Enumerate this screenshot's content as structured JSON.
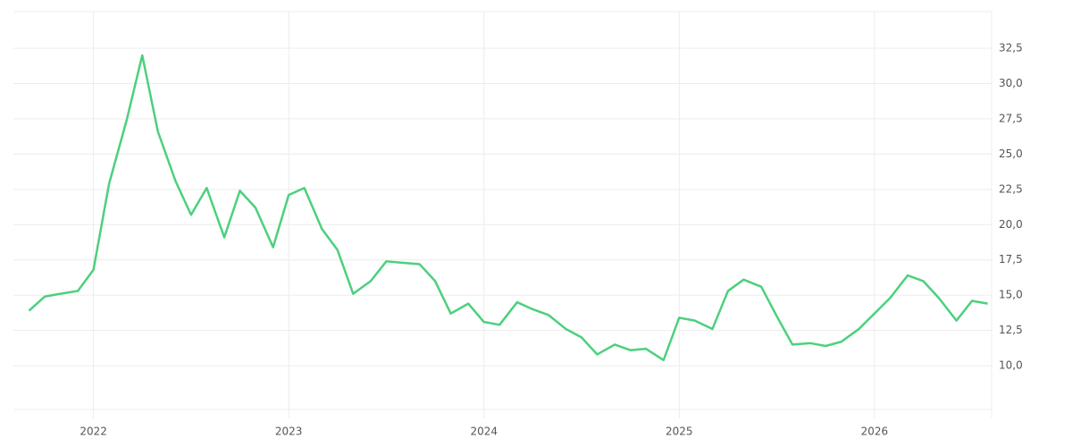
{
  "chart_data": {
    "type": "line",
    "x": [
      2021.67,
      2021.75,
      2021.83,
      2021.92,
      2022,
      2022.08,
      2022.17,
      2022.25,
      2022.33,
      2022.42,
      2022.5,
      2022.58,
      2022.67,
      2022.75,
      2022.83,
      2022.92,
      2023,
      2023.08,
      2023.17,
      2023.25,
      2023.33,
      2023.42,
      2023.5,
      2023.58,
      2023.67,
      2023.75,
      2023.83,
      2023.92,
      2024,
      2024.08,
      2024.17,
      2024.25,
      2024.33,
      2024.42,
      2024.5,
      2024.58,
      2024.67,
      2024.75,
      2024.83,
      2024.92,
      2025,
      2025.08,
      2025.17,
      2025.25,
      2025.33,
      2025.42,
      2025.5,
      2025.58,
      2025.67,
      2025.75,
      2025.83,
      2025.92,
      2026,
      2026.08,
      2026.17,
      2026.25,
      2026.33,
      2026.42,
      2026.5,
      2026.58
    ],
    "series": [
      {
        "color": "#4cd07d",
        "values": [
          13.9,
          14.9,
          15.1,
          15.3,
          16.8,
          22.9,
          27.4,
          32.0,
          26.6,
          23.1,
          20.7,
          22.6,
          19.1,
          22.4,
          21.2,
          18.4,
          22.1,
          22.6,
          19.7,
          18.2,
          15.1,
          16.0,
          17.4,
          17.3,
          17.2,
          16.0,
          13.7,
          14.4,
          13.1,
          12.9,
          14.5,
          14.0,
          13.6,
          12.6,
          12.0,
          10.8,
          11.5,
          11.1,
          11.2,
          10.4,
          13.4,
          13.2,
          12.6,
          15.3,
          16.1,
          15.6,
          13.5,
          11.5,
          11.6,
          11.4,
          11.7,
          12.6,
          13.7,
          14.8,
          16.4,
          16.0,
          14.8,
          13.2,
          14.6,
          14.4
        ]
      }
    ],
    "xlim": [
      2021.59,
      2026.6
    ],
    "xticks": [
      2022,
      2023,
      2024,
      2025,
      2026
    ],
    "ylim": [
      6.9,
      35.1
    ],
    "yticks": [
      {
        "value": 10,
        "label": "10,0"
      },
      {
        "value": 12.5,
        "label": "12,5"
      },
      {
        "value": 15,
        "label": "15,0"
      },
      {
        "value": 17.5,
        "label": "17,5"
      },
      {
        "value": 20,
        "label": "20,0"
      },
      {
        "value": 22.5,
        "label": "22,5"
      },
      {
        "value": 25,
        "label": "25,0"
      },
      {
        "value": 27.5,
        "label": "27,5"
      },
      {
        "value": 30,
        "label": "30,0"
      },
      {
        "value": 32.5,
        "label": "32,5"
      }
    ],
    "grid": true
  }
}
